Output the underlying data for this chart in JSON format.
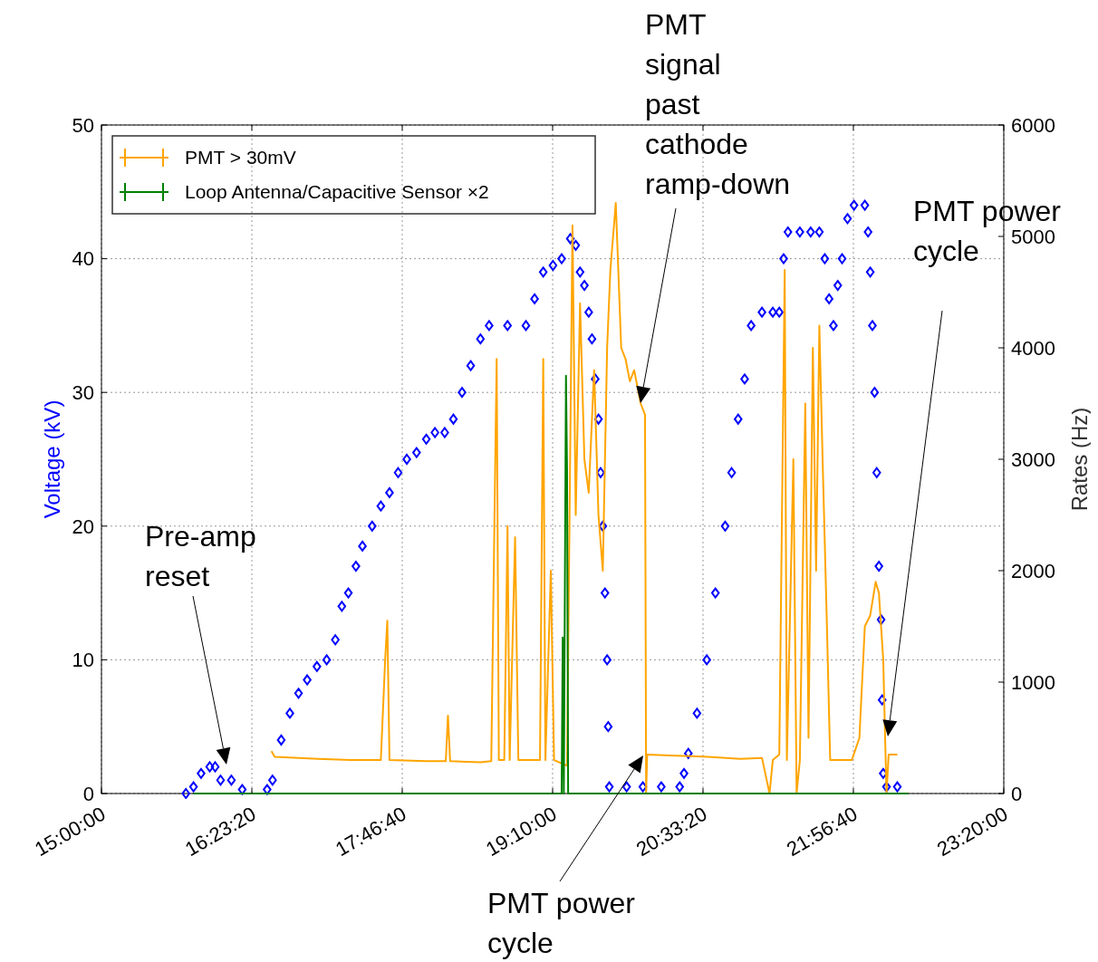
{
  "chart_data": {
    "type": "line",
    "ylabel": "Voltage (kV)",
    "y2label": "Rates (Hz)",
    "xlim": [
      15,
      23.3333
    ],
    "xticks": [
      {
        "value": 15,
        "label": "15:00:00"
      },
      {
        "value": 16.3889,
        "label": "16:23:20"
      },
      {
        "value": 17.7778,
        "label": "17:46:40"
      },
      {
        "value": 19.1667,
        "label": "19:10:00"
      },
      {
        "value": 20.5556,
        "label": "20:33:20"
      },
      {
        "value": 21.9444,
        "label": "21:56:40"
      },
      {
        "value": 23.3333,
        "label": "23:20:00"
      }
    ],
    "ylim": [
      0,
      50
    ],
    "yticks": [
      0,
      10,
      20,
      30,
      40,
      50
    ],
    "y2lim": [
      0,
      6000
    ],
    "y2ticks": [
      0,
      1000,
      2000,
      3000,
      4000,
      5000,
      6000
    ],
    "grid": true,
    "legend": "top left",
    "series": [
      {
        "type": "scatter",
        "color": "#0000ff",
        "marker": "diamond",
        "x": [
          15.78,
          15.85,
          15.92,
          16.0,
          16.05,
          16.1,
          16.2,
          16.3,
          16.53,
          16.58,
          16.66,
          16.74,
          16.82,
          16.9,
          16.99,
          17.08,
          17.16,
          17.22,
          17.28,
          17.35,
          17.41,
          17.5,
          17.58,
          17.66,
          17.74,
          17.82,
          17.91,
          18.0,
          18.08,
          18.17,
          18.25,
          18.33,
          18.41,
          18.5,
          18.58,
          18.75,
          18.92,
          19.0,
          19.08,
          19.17,
          19.25,
          19.33,
          19.38,
          19.42,
          19.46,
          19.5,
          19.53,
          19.56,
          19.59,
          19.61,
          19.63,
          19.65,
          19.67,
          19.68,
          19.69,
          19.85,
          20.0,
          20.17,
          20.34,
          20.38,
          20.42,
          20.5,
          20.59,
          20.67,
          20.76,
          20.82,
          20.88,
          20.94,
          21.0,
          21.1,
          21.2,
          21.26,
          21.3,
          21.34,
          21.45,
          21.55,
          21.63,
          21.68,
          21.72,
          21.76,
          21.8,
          21.84,
          21.89,
          21.95,
          22.05,
          22.08,
          22.1,
          22.12,
          22.14,
          22.16,
          22.18,
          22.2,
          22.21,
          22.22,
          22.25,
          22.35
        ],
        "values": [
          0,
          0.5,
          1.5,
          2,
          2,
          1,
          1,
          0.3,
          0.3,
          1,
          4,
          6,
          7.5,
          8.5,
          9.5,
          10,
          11.5,
          14,
          15,
          17,
          18.5,
          20,
          21.5,
          22.5,
          24,
          25,
          25.5,
          26.5,
          27,
          27,
          28,
          30,
          32,
          34,
          35,
          35,
          35,
          37,
          39,
          39.5,
          40,
          41.5,
          41,
          39,
          38,
          36,
          34,
          31,
          28,
          24,
          20,
          15,
          10,
          5,
          0.5,
          0.5,
          0.5,
          0.5,
          0.5,
          1.5,
          3,
          6,
          10,
          15,
          20,
          24,
          28,
          31,
          35,
          36,
          36,
          36,
          40,
          42,
          42,
          42,
          42,
          40,
          37,
          35,
          38,
          40,
          43,
          44,
          44,
          42,
          39,
          35,
          30,
          24,
          17,
          13,
          7,
          1.5,
          0.5,
          0.5
        ]
      },
      {
        "name": "PMT > 30mV",
        "color": "#ffa500",
        "axis": "y2",
        "x": [
          16.57,
          16.6,
          17.0,
          17.3,
          17.58,
          17.62,
          17.64,
          17.66,
          18.0,
          18.18,
          18.2,
          18.22,
          18.5,
          18.6,
          18.63,
          18.65,
          18.67,
          18.72,
          18.75,
          18.77,
          18.82,
          18.85,
          19.05,
          19.08,
          19.1,
          19.15,
          19.18,
          19.3,
          19.35,
          19.38,
          19.42,
          19.46,
          19.5,
          19.55,
          19.59,
          19.63,
          19.67,
          19.7,
          19.75,
          19.8,
          19.84,
          19.88,
          19.92,
          19.98,
          20.02,
          20.03,
          20.04,
          20.3,
          20.6,
          20.9,
          21.1,
          21.17,
          21.2,
          21.26,
          21.31,
          21.33,
          21.39,
          21.42,
          21.45,
          21.5,
          21.53,
          21.57,
          21.6,
          21.63,
          21.66,
          21.7,
          21.73,
          21.9,
          21.93,
          22.0,
          22.05,
          22.1,
          22.15,
          22.18,
          22.22,
          22.25,
          22.27,
          22.35
        ],
        "values": [
          380,
          330,
          310,
          300,
          300,
          1200,
          1550,
          300,
          290,
          290,
          700,
          290,
          280,
          290,
          2500,
          3900,
          300,
          300,
          2400,
          300,
          2300,
          300,
          300,
          3900,
          300,
          2000,
          300,
          250,
          5100,
          2500,
          4400,
          3000,
          2700,
          3800,
          2500,
          2000,
          4000,
          4700,
          5300,
          4000,
          3900,
          3700,
          3800,
          3500,
          3400,
          0,
          350,
          340,
          330,
          310,
          320,
          0,
          300,
          350,
          4700,
          300,
          3000,
          0,
          300,
          3500,
          500,
          4000,
          2000,
          4200,
          3000,
          1500,
          300,
          300,
          300,
          500,
          1500,
          1600,
          1900,
          1800,
          1200,
          0,
          350,
          350
        ]
      },
      {
        "name": "Loop Antenna/Capacitive Sensor ×2",
        "color": "#008000",
        "axis": "y2",
        "x": [
          15.85,
          19.25,
          19.26,
          19.27,
          19.29,
          19.3,
          19.31,
          22.45
        ],
        "values": [
          0,
          0,
          1400,
          0,
          3750,
          2900,
          0,
          0
        ]
      }
    ],
    "annotations": [
      "Pre-amp reset",
      "PMT signal past cathode ramp-down",
      "PMT power cycle",
      "PMT power cycle"
    ]
  }
}
